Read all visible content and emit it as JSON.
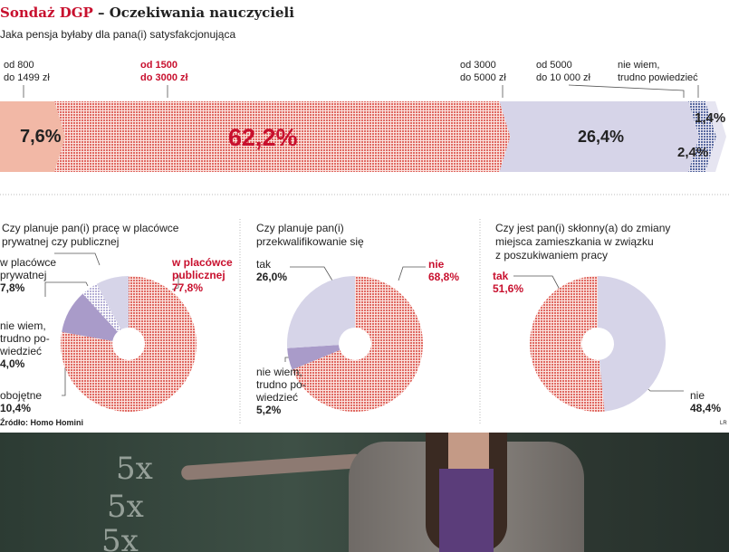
{
  "header": {
    "title_brand": "Sondaż DGP",
    "title_rest": " – Oczekiwania nauczycieli",
    "subtitle": "Jaka pensja byłaby dla pana(i) satysfakcjonująca"
  },
  "colors": {
    "accent": "#c8102e",
    "salmon": "#f2b8a6",
    "lavender": "#d6d4e8",
    "purple": "#a99bc9",
    "dots_red": "#e06a63",
    "dots_blue": "#5a6aa0"
  },
  "chart_data": [
    {
      "type": "bar",
      "stacked": true,
      "question": "Jaka pensja byłaby dla pana(i) satysfakcjonująca",
      "categories": [
        "od 800\ndo 1499 zł",
        "od 1500\ndo 3000 zł",
        "od 3000\ndo 5000 zł",
        "od 5000\ndo 10 000 zł",
        "nie wiem,\ntrudno powiedzieć"
      ],
      "values": [
        7.6,
        62.2,
        26.4,
        2.4,
        1.4
      ],
      "value_labels": [
        "7,6%",
        "62,2%",
        "26,4%",
        "2,4%",
        "1,4%"
      ]
    },
    {
      "type": "pie",
      "donut": true,
      "title": "Czy planuje pan(i) pracę w placówce\nprywatnej czy publicznej",
      "slices": [
        {
          "label": "w placówce\npublicznej",
          "value": 77.8,
          "text": "77,8%"
        },
        {
          "label": "obojętne",
          "value": 10.4,
          "text": "10,4%"
        },
        {
          "label": "nie wiem,\ntrudno po-\nwiedzieć",
          "value": 4.0,
          "text": "4,0%"
        },
        {
          "label": "w placówce\nprywatnej",
          "value": 7.8,
          "text": "7,8%"
        }
      ]
    },
    {
      "type": "pie",
      "donut": true,
      "title": "Czy planuje pan(i)\nprzekwalifikowanie się",
      "slices": [
        {
          "label": "nie",
          "value": 68.8,
          "text": "68,8%"
        },
        {
          "label": "nie wiem,\ntrudno po-\nwiedzieć",
          "value": 5.2,
          "text": "5,2%"
        },
        {
          "label": "tak",
          "value": 26.0,
          "text": "26,0%"
        }
      ]
    },
    {
      "type": "pie",
      "donut": true,
      "title": "Czy jest pan(i) skłonny(a) do zmiany\nmiejsca zamieszkania w związku\nz poszukiwaniem pracy",
      "slices": [
        {
          "label": "nie",
          "value": 48.4,
          "text": "48,4%"
        },
        {
          "label": "tak",
          "value": 51.6,
          "text": "51,6%"
        }
      ]
    }
  ],
  "footer": {
    "source": "Źródło: Homo Homini",
    "credit": "LR"
  },
  "photo": {
    "chalk": [
      "5x",
      "5x",
      "5x"
    ]
  }
}
